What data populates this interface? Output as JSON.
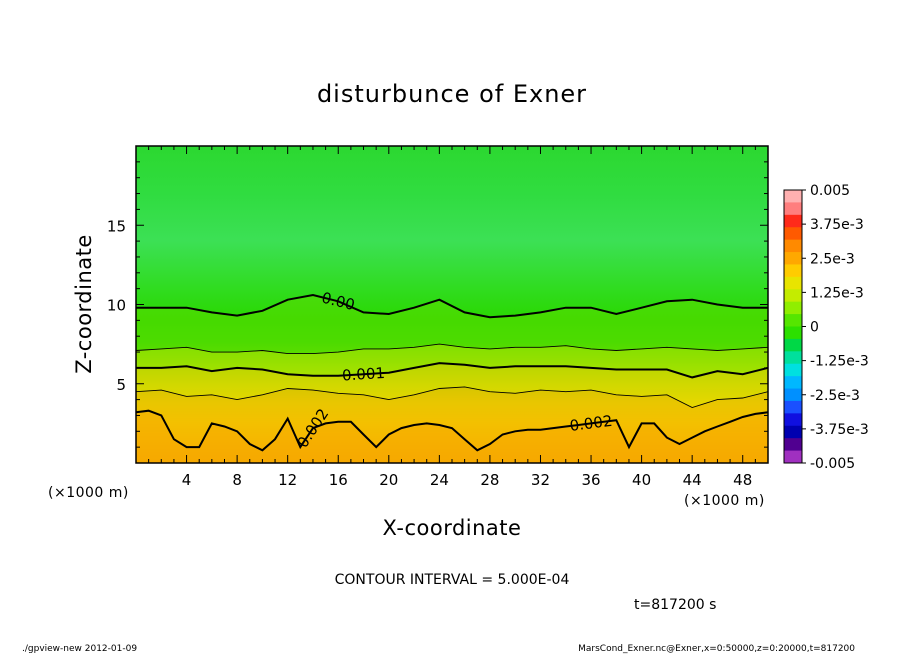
{
  "chart_data": {
    "type": "contour",
    "title": "disturbunce of Exner",
    "xlabel": "X-coordinate",
    "ylabel": "Z-coordinate",
    "x_unit": "(×1000 m)",
    "y_unit": "(×1000 m)",
    "xlim": [
      0,
      50
    ],
    "ylim": [
      0,
      20
    ],
    "xticks": [
      4,
      8,
      12,
      16,
      20,
      24,
      28,
      32,
      36,
      40,
      44,
      48
    ],
    "yticks": [
      5,
      10,
      15
    ],
    "contour_interval_text": "CONTOUR INTERVAL = 5.000E-04",
    "time_text": "t=817200 s",
    "contours": [
      {
        "level": 0.002,
        "label": "0.002",
        "bold": true,
        "x": [
          0,
          1,
          2,
          3,
          4,
          5,
          6,
          7,
          8,
          9,
          10,
          11,
          12,
          13,
          14,
          15,
          16,
          17,
          18,
          19,
          20,
          21,
          22,
          23,
          24,
          25,
          26,
          27,
          28,
          29,
          30,
          31,
          32,
          33,
          34,
          35,
          36,
          37,
          38,
          39,
          40,
          41,
          42,
          43,
          44,
          45,
          46,
          47,
          48,
          49,
          50
        ],
        "z": [
          3.2,
          3.3,
          3.0,
          1.5,
          1.0,
          1.0,
          2.5,
          2.3,
          2.0,
          1.2,
          0.8,
          1.5,
          2.8,
          1.0,
          2.2,
          2.5,
          2.6,
          2.6,
          1.8,
          1.0,
          1.8,
          2.2,
          2.4,
          2.5,
          2.4,
          2.2,
          1.5,
          0.8,
          1.2,
          1.8,
          2.0,
          2.1,
          2.1,
          2.2,
          2.3,
          2.4,
          2.5,
          2.6,
          2.7,
          1.0,
          2.5,
          2.5,
          1.6,
          1.2,
          1.6,
          2.0,
          2.3,
          2.6,
          2.9,
          3.1,
          3.2
        ]
      },
      {
        "level": 0.0015,
        "label": "",
        "bold": false,
        "x": [
          0,
          2,
          4,
          6,
          8,
          10,
          12,
          14,
          16,
          18,
          20,
          22,
          24,
          26,
          28,
          30,
          32,
          34,
          36,
          38,
          40,
          42,
          44,
          46,
          48,
          50
        ],
        "z": [
          4.5,
          4.6,
          4.2,
          4.3,
          4.0,
          4.3,
          4.7,
          4.6,
          4.4,
          4.3,
          4.0,
          4.3,
          4.7,
          4.8,
          4.5,
          4.4,
          4.6,
          4.5,
          4.6,
          4.3,
          4.2,
          4.3,
          3.5,
          4.0,
          4.1,
          4.5
        ]
      },
      {
        "level": 0.001,
        "label": "0.001",
        "bold": true,
        "x": [
          0,
          2,
          4,
          6,
          8,
          10,
          12,
          14,
          16,
          18,
          20,
          22,
          24,
          26,
          28,
          30,
          32,
          34,
          36,
          38,
          40,
          42,
          44,
          46,
          48,
          50
        ],
        "z": [
          6.0,
          6.0,
          6.1,
          5.8,
          6.0,
          5.9,
          5.6,
          5.5,
          5.5,
          5.6,
          5.7,
          6.0,
          6.3,
          6.2,
          6.0,
          6.1,
          6.1,
          6.1,
          6.0,
          5.9,
          5.9,
          5.9,
          5.4,
          5.8,
          5.6,
          6.0
        ]
      },
      {
        "level": 0.0005,
        "label": "",
        "bold": false,
        "x": [
          0,
          2,
          4,
          6,
          8,
          10,
          12,
          14,
          16,
          18,
          20,
          22,
          24,
          26,
          28,
          30,
          32,
          34,
          36,
          38,
          40,
          42,
          44,
          46,
          48,
          50
        ],
        "z": [
          7.1,
          7.2,
          7.3,
          7.0,
          7.0,
          7.1,
          6.9,
          6.9,
          7.0,
          7.2,
          7.2,
          7.3,
          7.5,
          7.3,
          7.2,
          7.3,
          7.3,
          7.4,
          7.2,
          7.1,
          7.2,
          7.3,
          7.2,
          7.1,
          7.2,
          7.3
        ]
      },
      {
        "level": 0.0,
        "label": "0.00",
        "bold": true,
        "x": [
          0,
          2,
          4,
          6,
          8,
          10,
          12,
          14,
          16,
          18,
          20,
          22,
          24,
          26,
          28,
          30,
          32,
          34,
          36,
          38,
          40,
          42,
          44,
          46,
          48,
          50
        ],
        "z": [
          9.8,
          9.8,
          9.8,
          9.5,
          9.3,
          9.6,
          10.3,
          10.6,
          10.2,
          9.5,
          9.4,
          9.8,
          10.3,
          9.5,
          9.2,
          9.3,
          9.5,
          9.8,
          9.8,
          9.4,
          9.8,
          10.2,
          10.3,
          10.0,
          9.8,
          9.8
        ]
      }
    ],
    "colorbar": {
      "labels": [
        "0.005",
        "3.75e-3",
        "2.5e-3",
        "1.25e-3",
        "0",
        "-1.25e-3",
        "-2.5e-3",
        "-3.75e-3",
        "-0.005"
      ],
      "colors": [
        "#ffb0b0",
        "#ff7e7e",
        "#ff2a1a",
        "#ff5a00",
        "#ff8a00",
        "#ffa800",
        "#ffcc00",
        "#e8e400",
        "#c4ec00",
        "#90ee00",
        "#55e600",
        "#2ce000",
        "#00d846",
        "#00e09c",
        "#00e0e0",
        "#00b8ff",
        "#0090ff",
        "#1a50ff",
        "#1010e0",
        "#0000b0",
        "#500090",
        "#a030c0"
      ]
    }
  },
  "footer": {
    "left": "./gpview-new   2012-01-09",
    "right": "MarsCond_Exner.nc@Exner,x=0:50000,z=0:20000,t=817200"
  }
}
